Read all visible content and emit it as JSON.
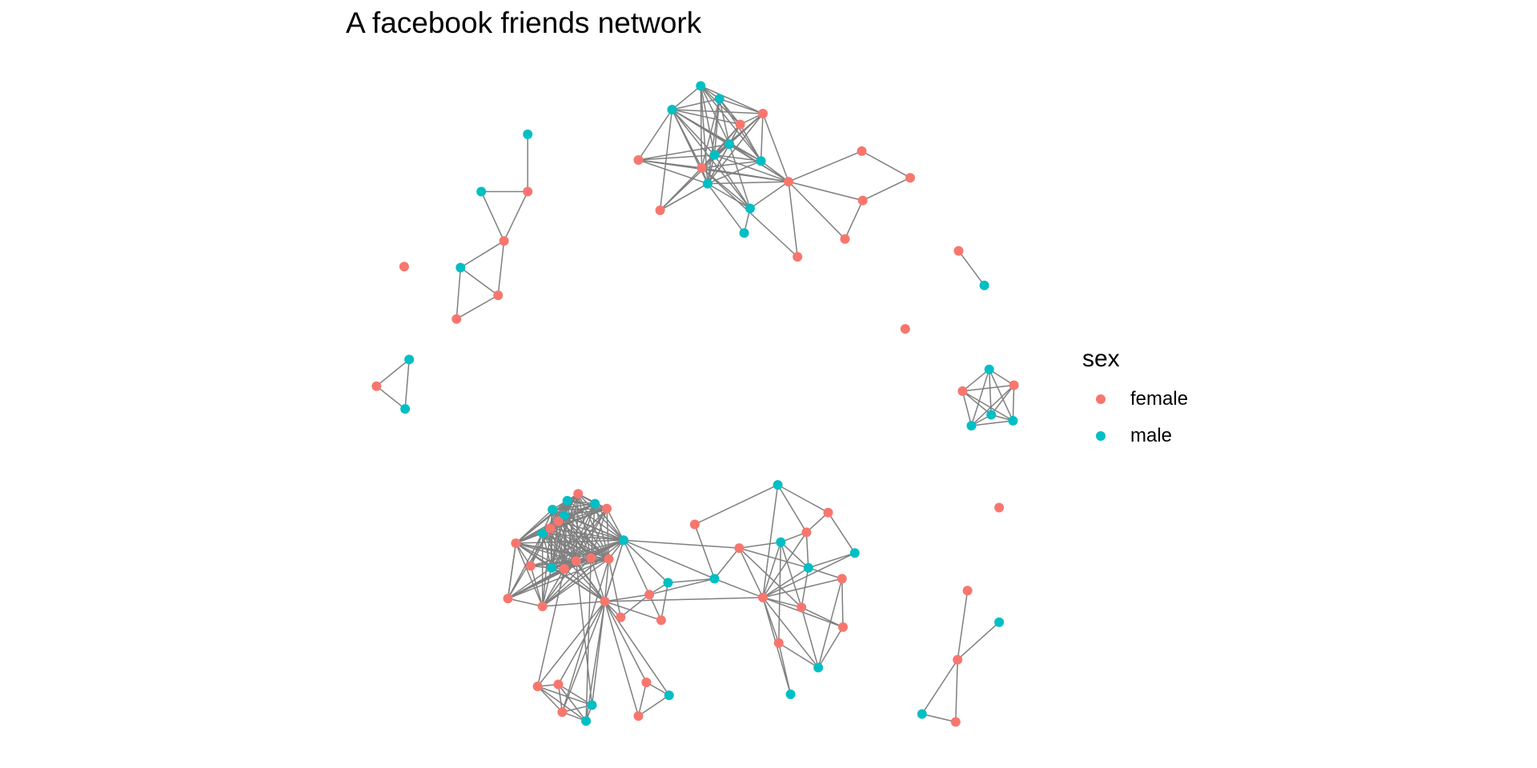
{
  "chart_data": {
    "type": "network",
    "title": "A facebook friends network",
    "legend": {
      "title": "sex",
      "position": "right",
      "items": [
        {
          "label": "female",
          "color": "#F8766D"
        },
        {
          "label": "male",
          "color": "#00BFC4"
        }
      ]
    },
    "edge_color": "#7F7F7F",
    "node_count": 108
  }
}
